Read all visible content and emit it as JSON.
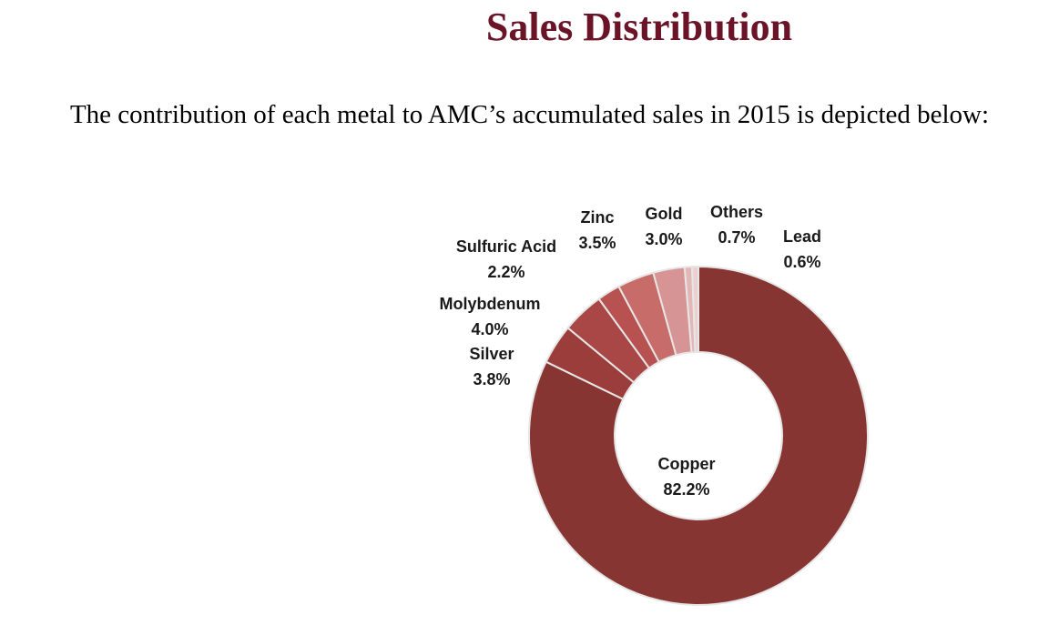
{
  "page": {
    "title": "Sales Distribution",
    "intro": "The contribution of each metal to AMC’s accumulated sales in 2015 is depicted below:"
  },
  "chart_data": {
    "type": "pie",
    "style": "donut",
    "title": "",
    "legend": "none",
    "slices": [
      {
        "label": "Copper",
        "value": 82.2,
        "value_label": "82.2%",
        "color": "#873533"
      },
      {
        "label": "Silver",
        "value": 3.8,
        "value_label": "3.8%",
        "color": "#9b3d3b"
      },
      {
        "label": "Molybdenum",
        "value": 4.0,
        "value_label": "4.0%",
        "color": "#a84745"
      },
      {
        "label": "Sulfuric Acid",
        "value": 2.2,
        "value_label": "2.2%",
        "color": "#b85250"
      },
      {
        "label": "Zinc",
        "value": 3.5,
        "value_label": "3.5%",
        "color": "#c86c6a"
      },
      {
        "label": "Gold",
        "value": 3.0,
        "value_label": "3.0%",
        "color": "#d69594"
      },
      {
        "label": "Others",
        "value": 0.7,
        "value_label": "0.7%",
        "color": "#e3b7b6"
      },
      {
        "label": "Lead",
        "value": 0.6,
        "value_label": "0.6%",
        "color": "#ecd0cf"
      }
    ]
  }
}
